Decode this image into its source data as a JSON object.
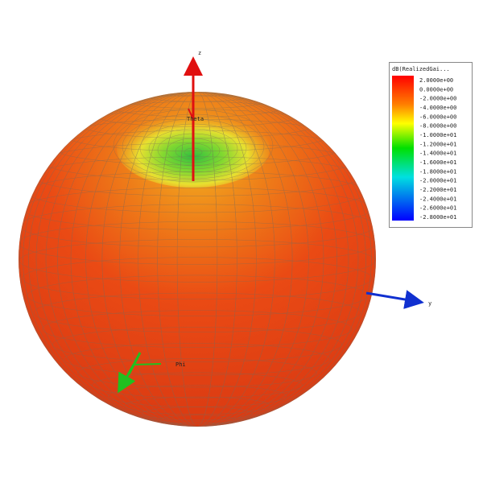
{
  "legend": {
    "title": "dB(RealizedGai...",
    "labels": [
      "2.0000e+00",
      "0.0000e+00",
      "-2.0000e+00",
      "-4.0000e+00",
      "-6.0000e+00",
      "-8.0000e+00",
      "-1.0000e+01",
      "-1.2000e+01",
      "-1.4000e+01",
      "-1.6000e+01",
      "-1.8000e+01",
      "-2.0000e+01",
      "-2.2000e+01",
      "-2.4000e+01",
      "-2.6000e+01",
      "-2.8000e+01"
    ]
  },
  "axes": {
    "z": "z",
    "y": "y",
    "theta": "Theta",
    "phi": "Phi"
  }
}
